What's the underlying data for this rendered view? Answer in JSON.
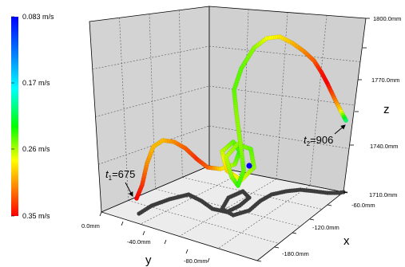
{
  "chart_data": {
    "type": "scatter",
    "projection": "3d",
    "title": "",
    "axes": {
      "x": {
        "label": "x",
        "ticks": [
          "-60.0mm",
          "-120.0mm",
          "-180.0mm"
        ]
      },
      "y": {
        "label": "y",
        "ticks": [
          "0.0mm",
          "-40.0mm",
          "-80.0mm"
        ]
      },
      "z": {
        "label": "z",
        "ticks": [
          "1800.0mm",
          "1770.0mm",
          "1740.0mm",
          "1710.0mm"
        ]
      }
    },
    "colorbar": {
      "quantity": "speed",
      "ticks": [
        "0.083 m/s",
        "0.17 m/s",
        "0.26 m/s",
        "0.35 m/s"
      ],
      "range": [
        0.083,
        0.35
      ],
      "colors": [
        "#0000ff",
        "#00ffff",
        "#00ff00",
        "#ffff00",
        "#ff8000",
        "#ff0000"
      ],
      "placement": "left"
    },
    "grid": true,
    "projection_color": "#3c3c3c",
    "annotations": [
      {
        "base": "t",
        "sub": "1",
        "value": "=675"
      },
      {
        "base": "t",
        "sub": "2",
        "value": "=906"
      }
    ]
  }
}
